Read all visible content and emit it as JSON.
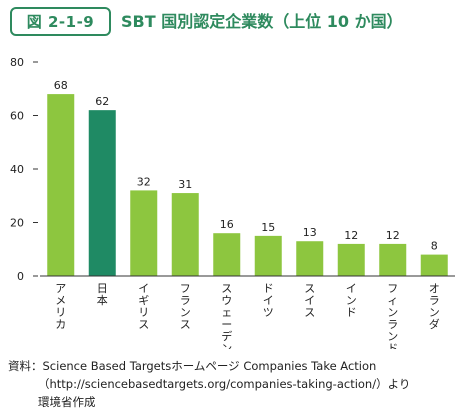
{
  "header": {
    "figure_number": "図 2-1-9",
    "title": "SBT 国別認定企業数（上位 10 か国）"
  },
  "chart_data": {
    "type": "bar",
    "title": "SBT 国別認定企業数（上位 10 か国）",
    "categories": [
      "アメリカ",
      "日本",
      "イギリス",
      "フランス",
      "スウェーデン",
      "ドイツ",
      "スイス",
      "インド",
      "フィンランド",
      "オランダ"
    ],
    "values": [
      68,
      62,
      32,
      31,
      16,
      15,
      13,
      12,
      12,
      8
    ],
    "highlight_index": 1,
    "ylim": [
      0,
      80
    ],
    "yticks": [
      0,
      20,
      40,
      60,
      80
    ],
    "xlabel": "",
    "ylabel": "",
    "grid": false,
    "colors": {
      "default": "#8dc63f",
      "highlight": "#1f8a64",
      "axis": "#333333"
    }
  },
  "source": {
    "line1": "資料：Science Based Targetsホームページ Companies Take Action",
    "line2": "（http://sciencebasedtargets.org/companies-taking-action/）より",
    "line3": "環境省作成"
  }
}
